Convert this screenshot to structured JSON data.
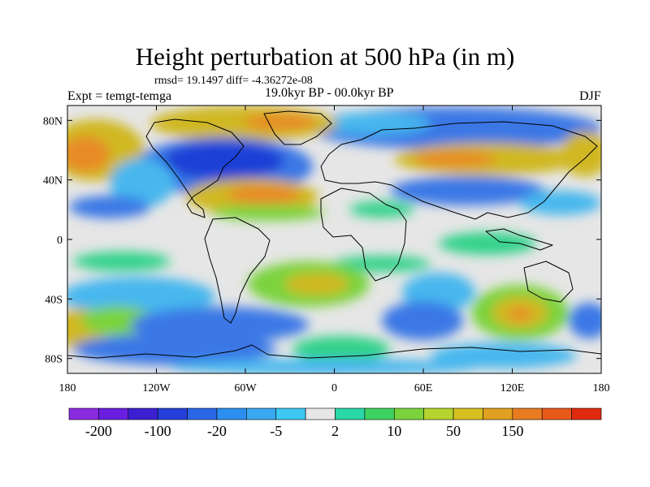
{
  "header": {
    "title": "Height perturbation at 500 hPa (in m)",
    "stats": "rmsd= 19.1497 diff= -4.36272e-08",
    "experiment": "Expt = temgt-temga",
    "period": "19.0kyr BP - 00.0kyr BP",
    "season": "DJF"
  },
  "map": {
    "projection": "cylindrical-equidistant",
    "lon_range": [
      -180,
      180
    ],
    "lat_range": [
      -90,
      90
    ],
    "x_ticks": [
      {
        "lon": -180,
        "label": "180"
      },
      {
        "lon": -120,
        "label": "120W"
      },
      {
        "lon": -60,
        "label": "60W"
      },
      {
        "lon": 0,
        "label": "0"
      },
      {
        "lon": 60,
        "label": "60E"
      },
      {
        "lon": 120,
        "label": "120E"
      },
      {
        "lon": 180,
        "label": "180"
      }
    ],
    "y_ticks": [
      {
        "lat": 80,
        "label": "80N"
      },
      {
        "lat": 40,
        "label": "40N"
      },
      {
        "lat": 0,
        "label": "0"
      },
      {
        "lat": -40,
        "label": "40S"
      },
      {
        "lat": -80,
        "label": "80S"
      }
    ],
    "fill_colors": {
      "strong_negative": "#1c3fd6",
      "negative": "#3a78e6",
      "weak_negative": "#47b7ee",
      "neutral": "#e6e6e6",
      "weak_positive": "#30d28a",
      "positive": "#7ad33c",
      "strong_positive": "#d0b820",
      "extreme_positive": "#e88a26"
    }
  },
  "colorbar": {
    "colors": [
      "#8a2be2",
      "#6a1fe0",
      "#3b1fd0",
      "#2440d8",
      "#2a66e8",
      "#2c8ef0",
      "#3aa8f0",
      "#3cc8f0",
      "#e6e6e6",
      "#2ad7a6",
      "#3fd260",
      "#7ad33c",
      "#b6d32f",
      "#d6c020",
      "#e0a020",
      "#e87a20",
      "#e85a1a",
      "#e02a10"
    ],
    "labels": [
      {
        "boundary": 1,
        "text": "-200"
      },
      {
        "boundary": 3,
        "text": "-100"
      },
      {
        "boundary": 5,
        "text": "-20"
      },
      {
        "boundary": 7,
        "text": "-5"
      },
      {
        "boundary": 9,
        "text": "2"
      },
      {
        "boundary": 11,
        "text": "10"
      },
      {
        "boundary": 13,
        "text": "50"
      },
      {
        "boundary": 15,
        "text": "150"
      }
    ]
  }
}
